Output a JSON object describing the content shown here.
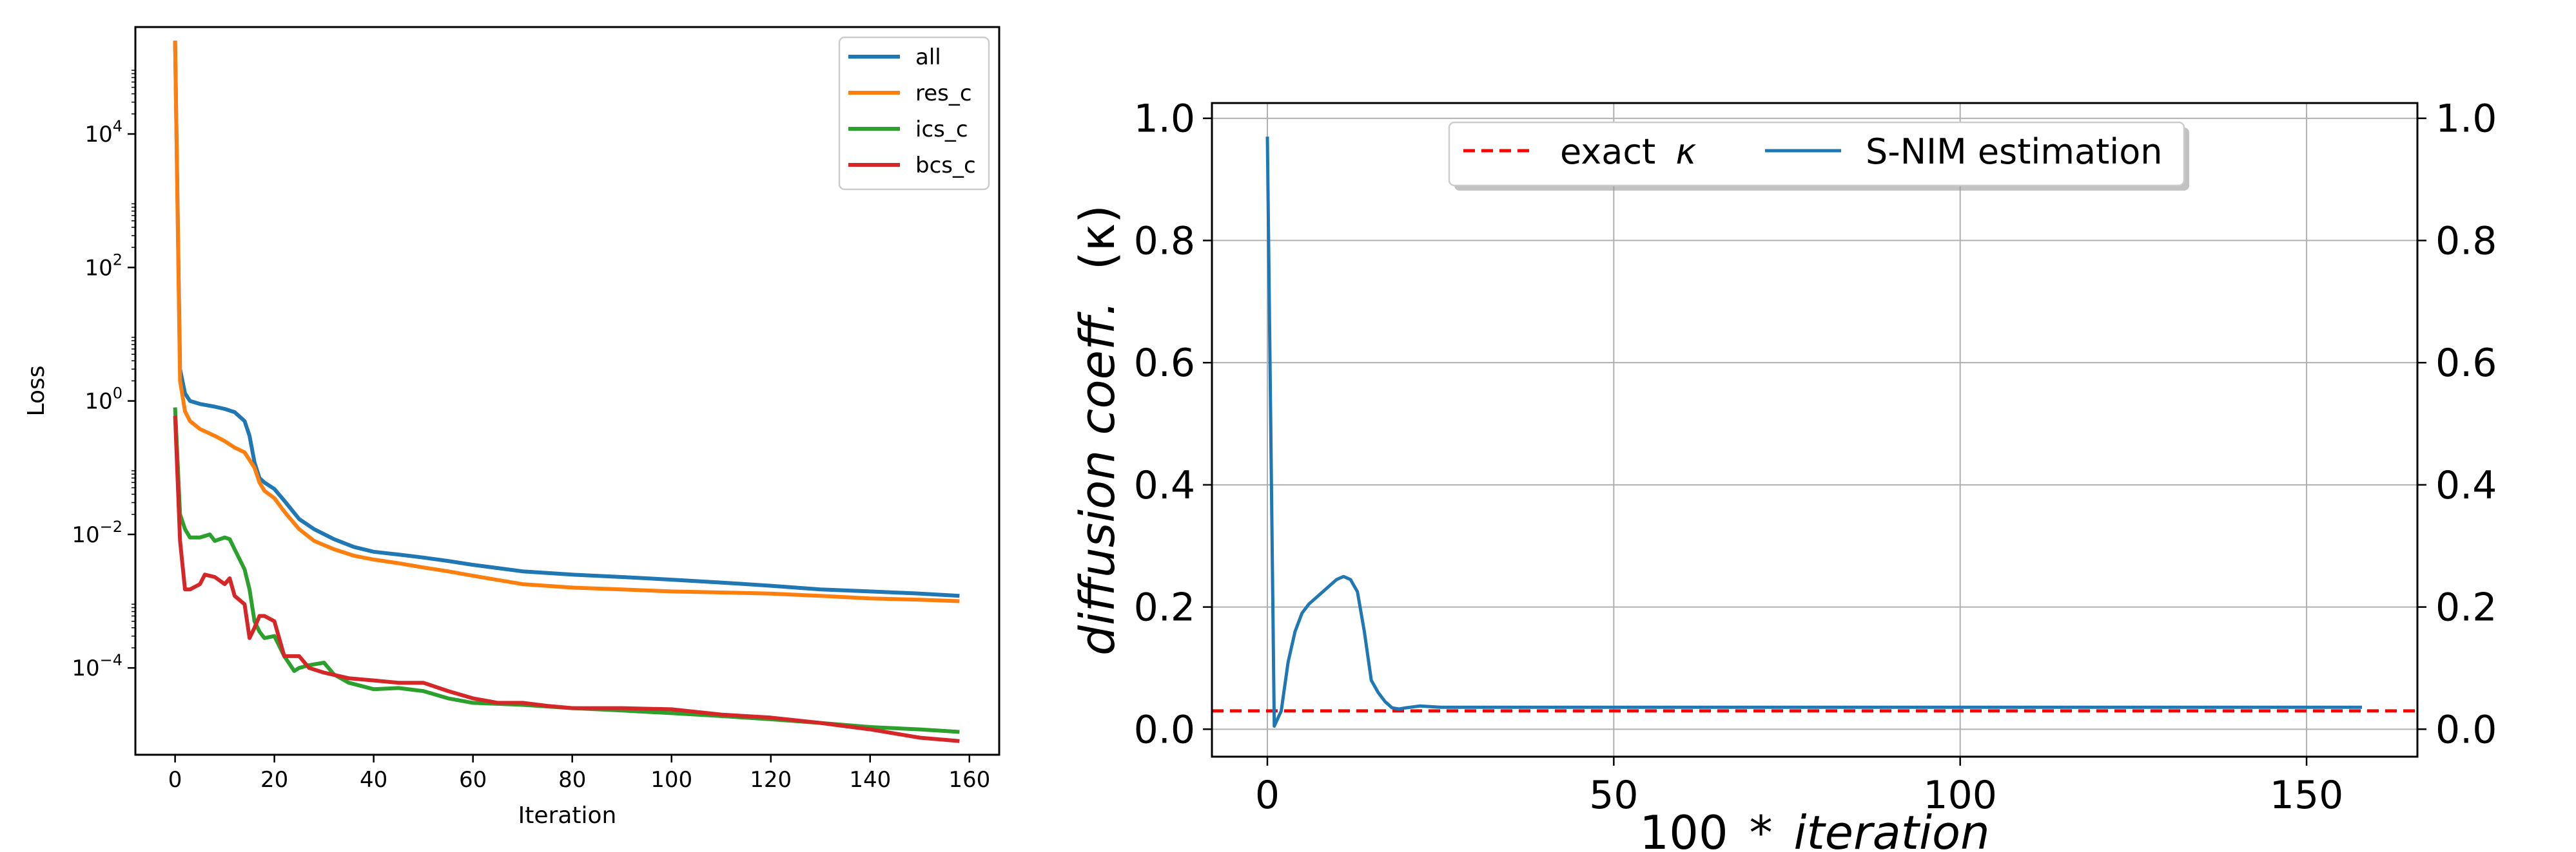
{
  "chart_data": [
    {
      "type": "line",
      "title": "",
      "xlabel": "Iteration",
      "ylabel": "Loss",
      "yscale": "log",
      "xlim": [
        -8,
        166
      ],
      "ylim": [
        5e-06,
        400000.0
      ],
      "xticks": [
        0,
        20,
        40,
        60,
        80,
        100,
        120,
        140,
        160
      ],
      "xtick_labels": [
        "0",
        "20",
        "40",
        "60",
        "80",
        "100",
        "120",
        "140",
        "160"
      ],
      "yticks": [
        0.0001,
        0.01,
        1,
        100,
        10000
      ],
      "ytick_labels": [
        {
          "base": "10",
          "exp": "−4"
        },
        {
          "base": "10",
          "exp": "−2"
        },
        {
          "base": "10",
          "exp": "0"
        },
        {
          "base": "10",
          "exp": "2"
        },
        {
          "base": "10",
          "exp": "4"
        }
      ],
      "grid": false,
      "legend": "top-right",
      "series": [
        {
          "name": "all",
          "color": "#1f77b4",
          "x": [
            0,
            1,
            2,
            3,
            5,
            8,
            10,
            12,
            14,
            15,
            16,
            17,
            18,
            20,
            22,
            25,
            28,
            32,
            36,
            40,
            45,
            50,
            55,
            60,
            70,
            80,
            90,
            100,
            110,
            120,
            130,
            140,
            150,
            158
          ],
          "y": [
            250000,
            3,
            1.3,
            1.0,
            0.9,
            0.82,
            0.76,
            0.68,
            0.5,
            0.3,
            0.12,
            0.07,
            0.06,
            0.048,
            0.032,
            0.017,
            0.012,
            0.0085,
            0.0065,
            0.0055,
            0.005,
            0.0045,
            0.004,
            0.0035,
            0.0028,
            0.0025,
            0.0023,
            0.0021,
            0.0019,
            0.0017,
            0.0015,
            0.0014,
            0.0013,
            0.0012
          ]
        },
        {
          "name": "res_c",
          "color": "#ff7f0e",
          "x": [
            0,
            1,
            2,
            3,
            5,
            8,
            10,
            12,
            14,
            16,
            17,
            18,
            20,
            22,
            25,
            28,
            32,
            36,
            40,
            45,
            50,
            55,
            60,
            70,
            80,
            90,
            100,
            110,
            120,
            130,
            140,
            150,
            158
          ],
          "y": [
            250000,
            2,
            0.7,
            0.5,
            0.38,
            0.3,
            0.25,
            0.2,
            0.17,
            0.1,
            0.06,
            0.045,
            0.035,
            0.022,
            0.012,
            0.008,
            0.006,
            0.0048,
            0.0042,
            0.0037,
            0.0032,
            0.0028,
            0.0024,
            0.0018,
            0.0016,
            0.0015,
            0.0014,
            0.00135,
            0.0013,
            0.0012,
            0.0011,
            0.00105,
            0.001
          ]
        },
        {
          "name": "ics_c",
          "color": "#2ca02c",
          "x": [
            0,
            1,
            2,
            3,
            5,
            7,
            8,
            10,
            11,
            12,
            14,
            15,
            16,
            17,
            18,
            20,
            22,
            24,
            25,
            27,
            30,
            32,
            35,
            40,
            45,
            50,
            55,
            60,
            70,
            80,
            90,
            100,
            110,
            120,
            130,
            140,
            150,
            158
          ],
          "y": [
            0.8,
            0.02,
            0.012,
            0.009,
            0.009,
            0.01,
            0.008,
            0.009,
            0.0085,
            0.006,
            0.003,
            0.0015,
            0.0005,
            0.00035,
            0.00028,
            0.0003,
            0.00015,
            9e-05,
            0.0001,
            0.00011,
            0.00012,
            8e-05,
            6e-05,
            4.8e-05,
            5e-05,
            4.5e-05,
            3.5e-05,
            3e-05,
            2.8e-05,
            2.5e-05,
            2.3e-05,
            2.1e-05,
            1.9e-05,
            1.7e-05,
            1.5e-05,
            1.3e-05,
            1.2e-05,
            1.1e-05
          ]
        },
        {
          "name": "bcs_c",
          "color": "#d62728",
          "x": [
            0,
            1,
            2,
            3,
            5,
            6,
            8,
            10,
            11,
            12,
            14,
            15,
            16,
            17,
            18,
            20,
            22,
            24,
            25,
            27,
            30,
            35,
            40,
            45,
            50,
            55,
            60,
            65,
            70,
            75,
            80,
            90,
            100,
            110,
            120,
            130,
            140,
            150,
            158
          ],
          "y": [
            0.6,
            0.008,
            0.0015,
            0.0015,
            0.0018,
            0.0025,
            0.0023,
            0.0018,
            0.0022,
            0.0012,
            0.0009,
            0.00028,
            0.0004,
            0.0006,
            0.0006,
            0.0005,
            0.00015,
            0.00015,
            0.00015,
            0.0001,
            8.5e-05,
            7e-05,
            6.5e-05,
            6e-05,
            6e-05,
            4.5e-05,
            3.5e-05,
            3e-05,
            3e-05,
            2.7e-05,
            2.5e-05,
            2.5e-05,
            2.4e-05,
            2e-05,
            1.8e-05,
            1.5e-05,
            1.2e-05,
            9e-06,
            8e-06
          ]
        }
      ]
    },
    {
      "type": "line",
      "title": "",
      "xlabel_prefix": "100",
      "xlabel_op": "*",
      "xlabel_suffix": "iteration",
      "ylabel_text": "diffusion coeff.",
      "ylabel_symbol": "(κ)",
      "xlim": [
        -8,
        166
      ],
      "ylim": [
        -0.045,
        1.025
      ],
      "xticks": [
        0,
        50,
        100,
        150
      ],
      "xtick_labels": [
        "0",
        "50",
        "100",
        "150"
      ],
      "yticks": [
        0.0,
        0.2,
        0.4,
        0.6,
        0.8,
        1.0
      ],
      "ytick_labels": [
        "0.0",
        "0.2",
        "0.4",
        "0.6",
        "0.8",
        "1.0"
      ],
      "right_ytick_labels": [
        "0.0",
        "0.2",
        "0.4",
        "0.6",
        "0.8",
        "1.0"
      ],
      "grid": true,
      "legend": "upper-center",
      "exact": {
        "name": "exact",
        "symbol": "κ",
        "value": 0.03,
        "color": "#ff0000",
        "style": "dashed"
      },
      "series": [
        {
          "name": "S-NIM estimation",
          "color": "#1f77b4",
          "x": [
            0,
            1,
            2,
            3,
            4,
            5,
            6,
            8,
            10,
            11,
            12,
            13,
            14,
            15,
            16,
            17,
            18,
            19,
            20,
            22,
            25,
            30,
            40,
            60,
            80,
            100,
            120,
            140,
            158
          ],
          "y": [
            0.97,
            0.005,
            0.03,
            0.11,
            0.16,
            0.19,
            0.205,
            0.225,
            0.245,
            0.25,
            0.245,
            0.225,
            0.16,
            0.08,
            0.06,
            0.045,
            0.035,
            0.033,
            0.035,
            0.038,
            0.036,
            0.036,
            0.036,
            0.036,
            0.036,
            0.036,
            0.036,
            0.036,
            0.036
          ]
        }
      ]
    }
  ]
}
